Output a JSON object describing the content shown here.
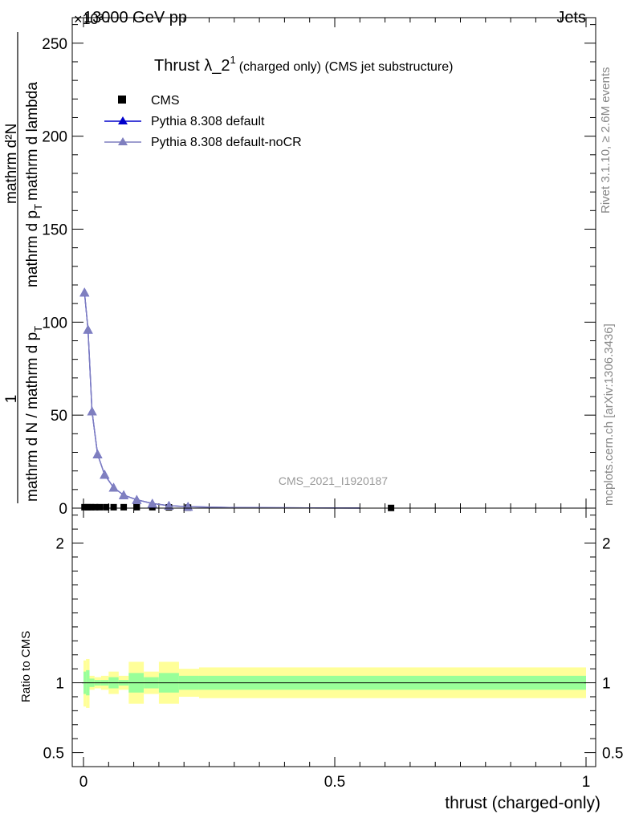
{
  "header": {
    "process": "13000 GeV pp",
    "category": "Jets",
    "exponent": "×10³"
  },
  "plot_title": {
    "main": "Thrust λ_2",
    "superscript": "1",
    "suffix": "(charged only) (CMS jet substructure)"
  },
  "side_labels": {
    "rivet": "Rivet 3.1.10, ≥ 2.6M events",
    "mcplots": "mcplots.cern.ch [arXiv:1306.3436]"
  },
  "watermark": "CMS_2021_I1920187",
  "y_axis_label": {
    "numerator_1": "1",
    "denominator_1": "mathrm d N / mathrm d p",
    "denominator_sub": "T",
    "numerator_2": "mathrm d²N",
    "denominator_2": "mathrm d p",
    "denominator_2_sub": "T",
    "denominator_2_tail": "mathrm d lambda"
  },
  "ratio_ylabel": "Ratio to CMS",
  "x_axis_label": "thrust (charged-only)",
  "legend": [
    {
      "label": "CMS",
      "marker": "square",
      "color": "#000000"
    },
    {
      "label": "Pythia 8.308 default",
      "marker": "triangle",
      "color": "#0000cc"
    },
    {
      "label": "Pythia 8.308 default-noCR",
      "marker": "triangle",
      "color": "#7f7fbf"
    }
  ],
  "chart_data": {
    "type": "line",
    "xlim": [
      0,
      1
    ],
    "ylim_main": [
      0,
      262
    ],
    "ylim_ratio": [
      0.4,
      2.25
    ],
    "x_ticks": [
      0,
      0.5,
      1
    ],
    "x_tick_labels": [
      "0",
      "0.5",
      "1"
    ],
    "y_ticks_main": [
      0,
      50,
      100,
      150,
      200,
      250
    ],
    "y_tick_labels_main": [
      "0",
      "50",
      "100",
      "150",
      "200",
      "250"
    ],
    "y_ticks_ratio": [
      0.5,
      1,
      2
    ],
    "y_tick_labels_ratio": [
      "0.5",
      "1",
      "2"
    ],
    "series": [
      {
        "name": "CMS",
        "marker": "square",
        "color": "#000000",
        "x": [
          0.002,
          0.009,
          0.015,
          0.023,
          0.032,
          0.045,
          0.06,
          0.08,
          0.106,
          0.137,
          0.17,
          0.208,
          0.612
        ],
        "y": [
          0.5,
          0.5,
          0.5,
          0.5,
          0.5,
          0.5,
          0.5,
          0.5,
          0.5,
          0.5,
          0.4,
          0.3,
          0.1
        ]
      },
      {
        "name": "Pythia 8.308 default",
        "marker": "triangle",
        "color": "#0000cc",
        "x": [
          0.002,
          0.009,
          0.017,
          0.028,
          0.042,
          0.06,
          0.08,
          0.106,
          0.137,
          0.17,
          0.208,
          0.3,
          0.45,
          0.55
        ],
        "y": [
          116,
          96,
          52,
          29,
          18,
          11,
          7,
          4.5,
          2.5,
          1.3,
          0.8,
          0.3,
          0.1,
          0.05
        ]
      },
      {
        "name": "Pythia 8.308 default-noCR",
        "marker": "triangle",
        "color": "#7f7fbf",
        "x": [
          0.002,
          0.009,
          0.017,
          0.028,
          0.042,
          0.06,
          0.08,
          0.106,
          0.137,
          0.17,
          0.208,
          0.3,
          0.45,
          0.55
        ],
        "y": [
          116,
          96,
          52,
          29,
          18,
          11,
          7,
          4.5,
          2.5,
          1.3,
          0.8,
          0.3,
          0.1,
          0.05
        ]
      }
    ],
    "ratio_bands": [
      {
        "x0": 0.0,
        "x1": 0.005,
        "yellow": [
          0.83,
          1.16
        ],
        "green": [
          0.92,
          1.08
        ]
      },
      {
        "x0": 0.005,
        "x1": 0.012,
        "yellow": [
          0.82,
          1.17
        ],
        "green": [
          0.91,
          1.09
        ]
      },
      {
        "x0": 0.012,
        "x1": 0.022,
        "yellow": [
          0.95,
          1.05
        ],
        "green": [
          0.97,
          1.03
        ]
      },
      {
        "x0": 0.022,
        "x1": 0.035,
        "yellow": [
          0.96,
          1.04
        ],
        "green": [
          0.98,
          1.02
        ]
      },
      {
        "x0": 0.035,
        "x1": 0.05,
        "yellow": [
          0.95,
          1.05
        ],
        "green": [
          0.98,
          1.02
        ]
      },
      {
        "x0": 0.05,
        "x1": 0.07,
        "yellow": [
          0.92,
          1.08
        ],
        "green": [
          0.96,
          1.04
        ]
      },
      {
        "x0": 0.07,
        "x1": 0.09,
        "yellow": [
          0.95,
          1.05
        ],
        "green": [
          0.98,
          1.02
        ]
      },
      {
        "x0": 0.09,
        "x1": 0.12,
        "yellow": [
          0.85,
          1.15
        ],
        "green": [
          0.93,
          1.07
        ]
      },
      {
        "x0": 0.12,
        "x1": 0.15,
        "yellow": [
          0.92,
          1.08
        ],
        "green": [
          0.96,
          1.04
        ]
      },
      {
        "x0": 0.15,
        "x1": 0.19,
        "yellow": [
          0.85,
          1.15
        ],
        "green": [
          0.93,
          1.07
        ]
      },
      {
        "x0": 0.19,
        "x1": 0.23,
        "yellow": [
          0.9,
          1.1
        ],
        "green": [
          0.95,
          1.05
        ]
      },
      {
        "x0": 0.23,
        "x1": 1.0,
        "yellow": [
          0.89,
          1.11
        ],
        "green": [
          0.95,
          1.05
        ]
      }
    ],
    "ratio_line": 1
  }
}
